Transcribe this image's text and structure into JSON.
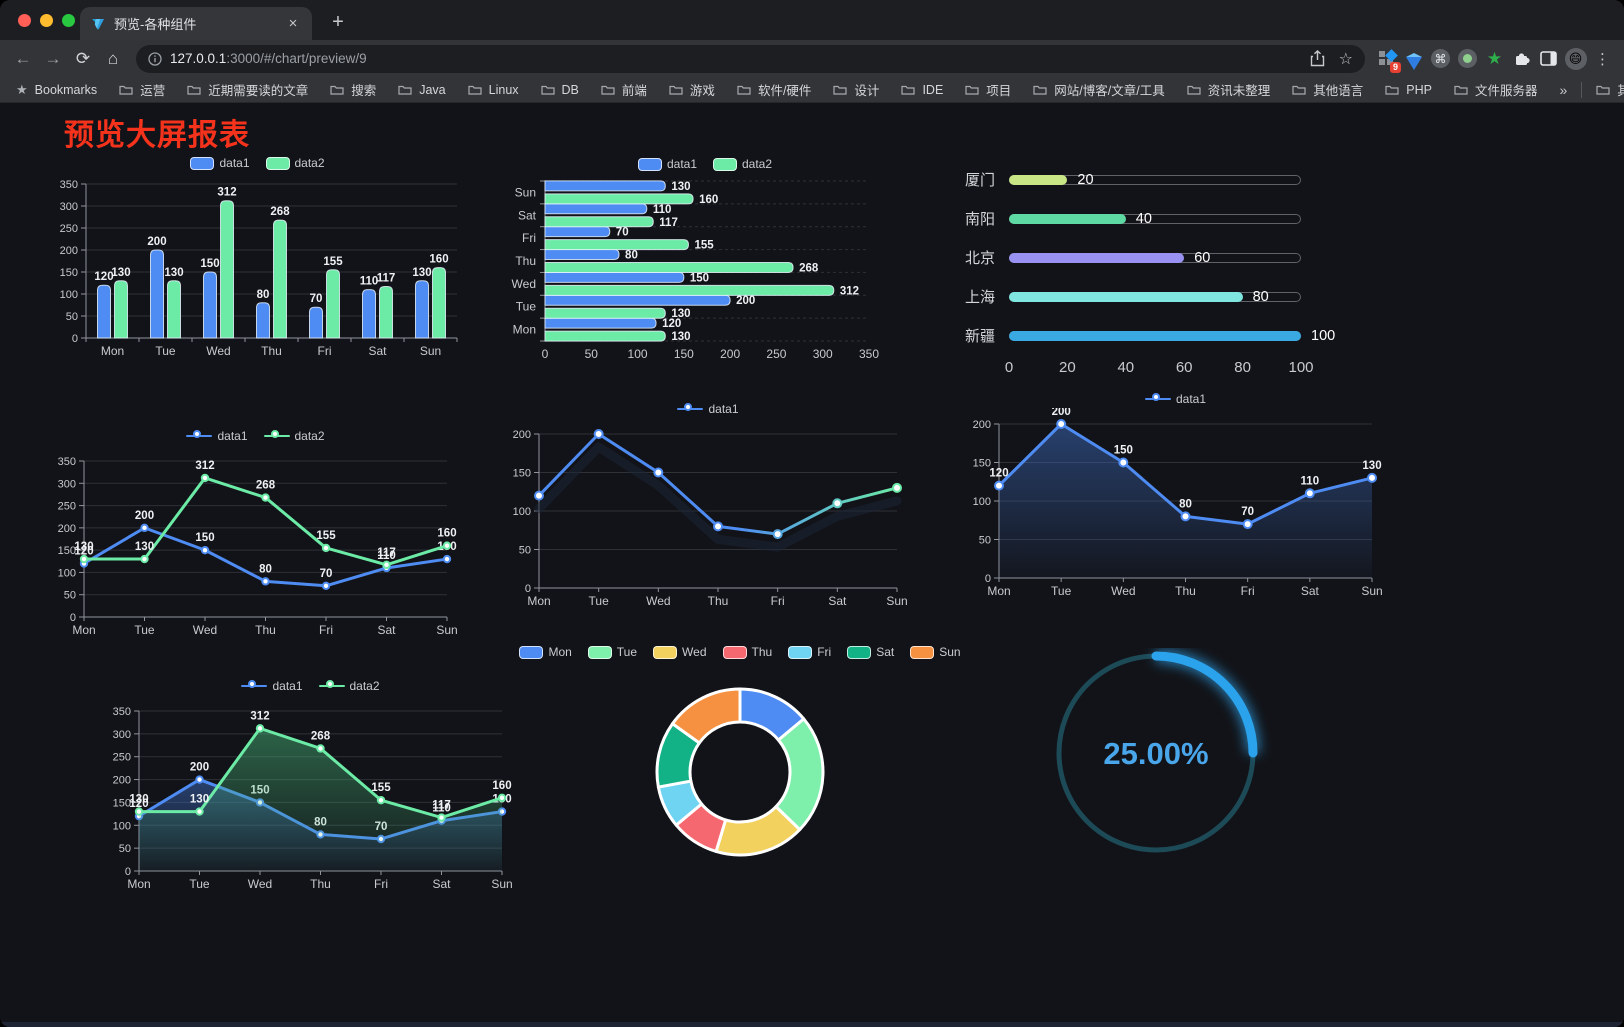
{
  "browser": {
    "tab": {
      "title": "预览-各种组件",
      "close_glyph": "×",
      "new_tab_glyph": "+"
    },
    "url": {
      "host": "127.0.0.1",
      "rest": ":3000/#/chart/preview/9"
    },
    "toolbar_icons": [
      "back-icon",
      "forward-icon",
      "reload-icon",
      "home-icon",
      "info-icon",
      "share-icon",
      "bookmark-star-icon",
      "apps-icon",
      "gem-icon",
      "command-icon",
      "recorder-icon",
      "green-star-icon",
      "puzzle-icon",
      "sidebar-icon",
      "avatar",
      "menu-kebab-icon"
    ],
    "extension_badge": "9",
    "avatar_emoji": "😄",
    "bookmarks_bar": {
      "star_label": "Bookmarks",
      "folders": [
        "运营",
        "近期需要读的文章",
        "搜索",
        "Java",
        "Linux",
        "DB",
        "前端",
        "游戏",
        "软件/硬件",
        "设计",
        "IDE",
        "项目",
        "网站/博客/文章/工具",
        "资讯未整理",
        "其他语言",
        "PHP",
        "文件服务器"
      ],
      "overflow_glyph": "»",
      "other_bookmarks": "其他书签"
    }
  },
  "page": {
    "title": "预览大屏报表",
    "title_color": "#f5331c",
    "background": "#121318"
  },
  "chart_data": [
    {
      "id": "bar",
      "type": "bar",
      "categories": [
        "Mon",
        "Tue",
        "Wed",
        "Thu",
        "Fri",
        "Sat",
        "Sun"
      ],
      "series": [
        {
          "name": "data1",
          "color": "#4e8cf3",
          "values": [
            120,
            200,
            150,
            80,
            70,
            110,
            130
          ]
        },
        {
          "name": "data2",
          "color": "#6ceba6",
          "values": [
            130,
            130,
            312,
            268,
            155,
            117,
            160
          ]
        }
      ],
      "ylim": [
        0,
        350
      ],
      "yticks": [
        0,
        50,
        100,
        150,
        200,
        250,
        300,
        350
      ],
      "legend_position": "top",
      "grid": true
    },
    {
      "id": "hbar",
      "type": "hbar",
      "categories": [
        "Mon",
        "Tue",
        "Wed",
        "Thu",
        "Fri",
        "Sat",
        "Sun"
      ],
      "series": [
        {
          "name": "data1",
          "color": "#4e8cf3",
          "values": [
            120,
            200,
            150,
            80,
            70,
            110,
            130
          ]
        },
        {
          "name": "data2",
          "color": "#6ceba6",
          "values": [
            130,
            130,
            312,
            268,
            155,
            117,
            160
          ]
        }
      ],
      "xlim": [
        0,
        350
      ],
      "xticks": [
        0,
        50,
        100,
        150,
        200,
        250,
        300,
        350
      ],
      "legend_position": "top",
      "grid": true
    },
    {
      "id": "progress",
      "type": "progress",
      "max": 100,
      "ticks": [
        0,
        20,
        40,
        60,
        80,
        100
      ],
      "rows": [
        {
          "label": "厦门",
          "value": 20,
          "color": "#c9e687"
        },
        {
          "label": "南阳",
          "value": 40,
          "color": "#5fd9a4"
        },
        {
          "label": "北京",
          "value": 60,
          "color": "#9a92f3"
        },
        {
          "label": "上海",
          "value": 80,
          "color": "#7fe6e0"
        },
        {
          "label": "新疆",
          "value": 100,
          "color": "#3aa9e2"
        }
      ]
    },
    {
      "id": "line2",
      "type": "line",
      "labels": true,
      "categories": [
        "Mon",
        "Tue",
        "Wed",
        "Thu",
        "Fri",
        "Sat",
        "Sun"
      ],
      "series": [
        {
          "name": "data1",
          "color": "#4e8cf3",
          "values": [
            120,
            200,
            150,
            80,
            70,
            110,
            130
          ]
        },
        {
          "name": "data2",
          "color": "#6ceba6",
          "values": [
            130,
            130,
            312,
            268,
            155,
            117,
            160
          ]
        }
      ],
      "ylim": [
        0,
        350
      ],
      "yticks": [
        0,
        50,
        100,
        150,
        200,
        250,
        300,
        350
      ],
      "legend_position": "top",
      "grid": true
    },
    {
      "id": "line1g",
      "type": "line",
      "labels": false,
      "shadow": true,
      "categories": [
        "Mon",
        "Tue",
        "Wed",
        "Thu",
        "Fri",
        "Sat",
        "Sun"
      ],
      "series": [
        {
          "name": "data1",
          "color": "#4e8cf3",
          "gradient": [
            "#4e8cf3",
            "#6ceba6"
          ],
          "values": [
            120,
            200,
            150,
            80,
            70,
            110,
            130
          ]
        }
      ],
      "ylim": [
        0,
        200
      ],
      "yticks": [
        0,
        50,
        100,
        150,
        200
      ],
      "legend_position": "top",
      "grid": true
    },
    {
      "id": "area1",
      "type": "line",
      "labels": true,
      "categories": [
        "Mon",
        "Tue",
        "Wed",
        "Thu",
        "Fri",
        "Sat",
        "Sun"
      ],
      "series": [
        {
          "name": "data1",
          "color": "#4e8cf3",
          "area": "#3e6ec3",
          "values": [
            120,
            200,
            150,
            80,
            70,
            110,
            130
          ]
        }
      ],
      "ylim": [
        0,
        200
      ],
      "yticks": [
        0,
        50,
        100,
        150,
        200
      ],
      "legend_position": "top",
      "grid": true
    },
    {
      "id": "area2",
      "type": "line",
      "labels": true,
      "categories": [
        "Mon",
        "Tue",
        "Wed",
        "Thu",
        "Fri",
        "Sat",
        "Sun"
      ],
      "series": [
        {
          "name": "data1",
          "color": "#4e8cf3",
          "area": "#3e6ec3",
          "values": [
            120,
            200,
            150,
            80,
            70,
            110,
            130
          ]
        },
        {
          "name": "data2",
          "color": "#6ceba6",
          "area": "#46b478",
          "values": [
            130,
            130,
            312,
            268,
            155,
            117,
            160
          ]
        }
      ],
      "ylim": [
        0,
        350
      ],
      "yticks": [
        0,
        50,
        100,
        150,
        200,
        250,
        300,
        350
      ],
      "legend_position": "top",
      "grid": true
    },
    {
      "id": "pie",
      "type": "pie",
      "categories": [
        "Mon",
        "Tue",
        "Wed",
        "Thu",
        "Fri",
        "Sat",
        "Sun"
      ],
      "values": [
        120,
        200,
        150,
        80,
        70,
        110,
        130
      ],
      "colors": [
        "#4e8cf3",
        "#7ef0ac",
        "#f3d15f",
        "#f5686f",
        "#6fd3f2",
        "#12b286",
        "#f59140"
      ],
      "legend_position": "top",
      "donut": true
    },
    {
      "id": "gauge",
      "type": "gauge",
      "value": 25,
      "label": "25.00%",
      "color": "#2ba3ec",
      "track_color": "#1d4a57",
      "text_color": "#4aa6ea"
    }
  ]
}
